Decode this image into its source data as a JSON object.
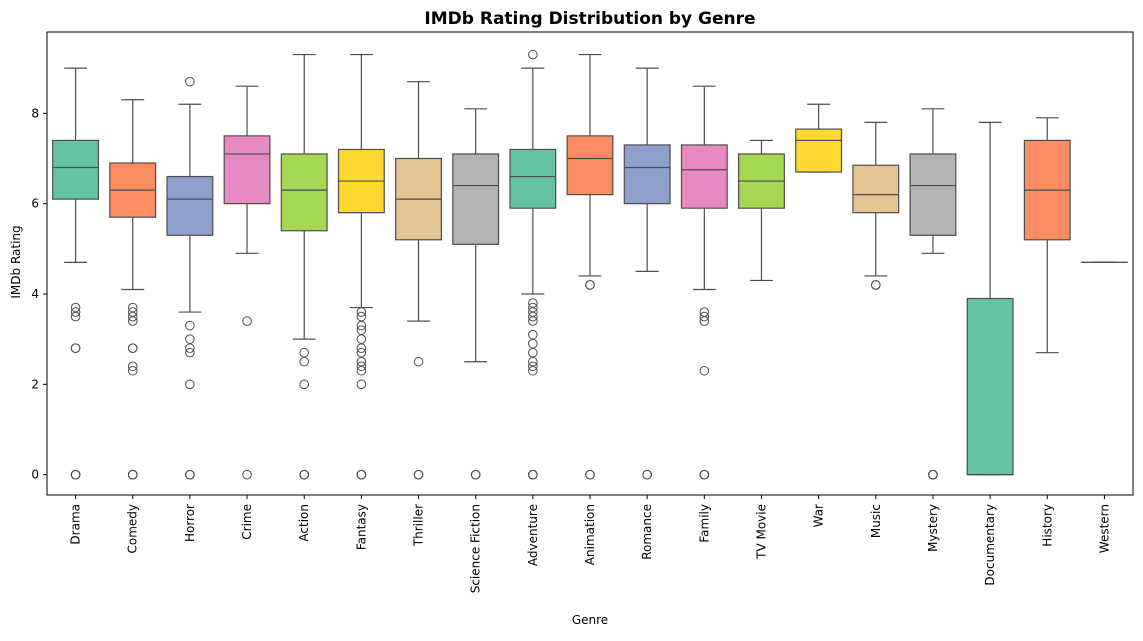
{
  "chart_data": {
    "type": "box",
    "title": "IMDb Rating Distribution by Genre",
    "xlabel": "Genre",
    "ylabel": "IMDb Rating",
    "ylim": [
      -0.45,
      9.8
    ],
    "yticks": [
      0,
      2,
      4,
      6,
      8
    ],
    "grid": false,
    "legend": "none",
    "categories": [
      "Drama",
      "Comedy",
      "Horror",
      "Crime",
      "Action",
      "Fantasy",
      "Thriller",
      "Science Fiction",
      "Adventure",
      "Animation",
      "Romance",
      "Family",
      "TV Movie",
      "War",
      "Music",
      "Mystery",
      "Documentary",
      "History",
      "Western"
    ],
    "colors": [
      "#66c2a5",
      "#fc8d62",
      "#8da0cb",
      "#e78ac3",
      "#a6d854",
      "#ffd92f",
      "#e5c494",
      "#b3b3b3",
      "#66c2a5",
      "#fc8d62",
      "#8da0cb",
      "#e78ac3",
      "#a6d854",
      "#ffd92f",
      "#e5c494",
      "#b3b3b3",
      "#66c2a5",
      "#fc8d62",
      "#8da0cb"
    ],
    "boxes": [
      {
        "whislo": 4.7,
        "q1": 6.1,
        "med": 6.8,
        "q3": 7.4,
        "whishi": 9.0,
        "fliers": [
          3.7,
          3.6,
          3.5,
          2.8,
          2.8,
          0,
          0,
          0
        ]
      },
      {
        "whislo": 4.1,
        "q1": 5.7,
        "med": 6.3,
        "q3": 6.9,
        "whishi": 8.3,
        "fliers": [
          3.7,
          3.6,
          3.5,
          3.4,
          2.8,
          2.8,
          2.4,
          2.3,
          0,
          0,
          0
        ]
      },
      {
        "whislo": 3.6,
        "q1": 5.3,
        "med": 6.1,
        "q3": 6.6,
        "whishi": 8.2,
        "fliers": [
          8.7,
          3.3,
          3.0,
          2.8,
          2.7,
          2.0,
          0,
          0,
          0
        ]
      },
      {
        "whislo": 4.9,
        "q1": 6.0,
        "med": 7.1,
        "q3": 7.5,
        "whishi": 8.6,
        "fliers": [
          3.4,
          0
        ]
      },
      {
        "whislo": 3.0,
        "q1": 5.4,
        "med": 6.3,
        "q3": 7.1,
        "whishi": 9.3,
        "fliers": [
          2.7,
          2.5,
          2.0,
          0,
          0,
          0
        ]
      },
      {
        "whislo": 3.7,
        "q1": 5.8,
        "med": 6.5,
        "q3": 7.2,
        "whishi": 9.3,
        "fliers": [
          3.6,
          3.5,
          3.3,
          3.2,
          3.0,
          2.8,
          2.7,
          2.5,
          2.4,
          2.3,
          2.0,
          0,
          0,
          0
        ]
      },
      {
        "whislo": 3.4,
        "q1": 5.2,
        "med": 6.1,
        "q3": 7.0,
        "whishi": 8.7,
        "fliers": [
          2.5,
          0,
          0
        ]
      },
      {
        "whislo": 2.5,
        "q1": 5.1,
        "med": 6.4,
        "q3": 7.1,
        "whishi": 8.1,
        "fliers": [
          0,
          0
        ]
      },
      {
        "whislo": 4.0,
        "q1": 5.9,
        "med": 6.6,
        "q3": 7.2,
        "whishi": 9.0,
        "fliers": [
          9.3,
          3.8,
          3.7,
          3.6,
          3.5,
          3.4,
          3.1,
          2.9,
          2.7,
          2.5,
          2.4,
          2.3,
          0,
          0,
          0
        ]
      },
      {
        "whislo": 4.4,
        "q1": 6.2,
        "med": 7.0,
        "q3": 7.5,
        "whishi": 9.3,
        "fliers": [
          4.2,
          4.2,
          0,
          0
        ]
      },
      {
        "whislo": 4.5,
        "q1": 6.0,
        "med": 6.8,
        "q3": 7.3,
        "whishi": 9.0,
        "fliers": [
          0,
          0
        ]
      },
      {
        "whislo": 4.1,
        "q1": 5.9,
        "med": 6.75,
        "q3": 7.3,
        "whishi": 8.6,
        "fliers": [
          3.6,
          3.5,
          3.4,
          2.3,
          0,
          0,
          0
        ]
      },
      {
        "whislo": 4.3,
        "q1": 5.9,
        "med": 6.5,
        "q3": 7.1,
        "whishi": 7.4,
        "fliers": []
      },
      {
        "whislo": 6.7,
        "q1": 6.7,
        "med": 7.4,
        "q3": 7.65,
        "whishi": 8.2,
        "fliers": []
      },
      {
        "whislo": 4.4,
        "q1": 5.8,
        "med": 6.2,
        "q3": 6.85,
        "whishi": 7.8,
        "fliers": [
          4.2,
          4.2
        ]
      },
      {
        "whislo": 4.9,
        "q1": 5.3,
        "med": 6.4,
        "q3": 7.1,
        "whishi": 8.1,
        "fliers": [
          0,
          0,
          0
        ]
      },
      {
        "whislo": 0.0,
        "q1": 0.0,
        "med": 0.0,
        "q3": 3.9,
        "whishi": 7.8,
        "fliers": []
      },
      {
        "whislo": 2.7,
        "q1": 5.2,
        "med": 6.3,
        "q3": 7.4,
        "whishi": 7.9,
        "fliers": []
      },
      {
        "whislo": 4.7,
        "q1": 4.7,
        "med": 4.7,
        "q3": 4.7,
        "whishi": 4.7,
        "fliers": []
      }
    ]
  }
}
